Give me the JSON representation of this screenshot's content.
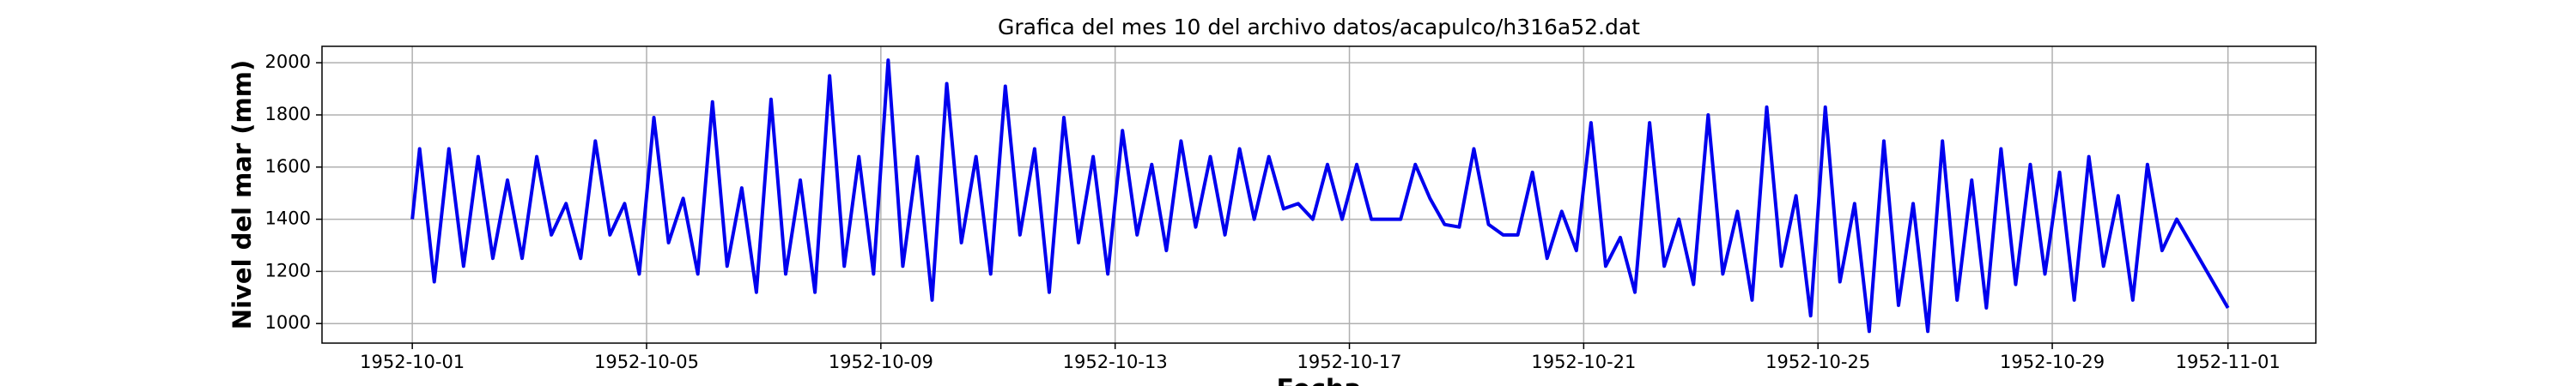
{
  "chart_data": {
    "type": "line",
    "title": "Grafica del mes 10 del archivo datos/acapulco/h316a52.dat",
    "x_label": "Fecha",
    "y_label": "Nivel del mar (mm)",
    "xlim": [
      "1952-09-29 11:00",
      "1952-11-02 12:00"
    ],
    "xticks": [
      "1952-10-01",
      "1952-10-05",
      "1952-10-09",
      "1952-10-13",
      "1952-10-17",
      "1952-10-21",
      "1952-10-25",
      "1952-10-29",
      "1952-11-01"
    ],
    "ylim": [
      925,
      2063
    ],
    "yticks": [
      1000,
      1200,
      1400,
      1600,
      1800,
      2000
    ],
    "grid": true,
    "x": [
      "1952-10-01 00:00",
      "1952-10-01 03:00",
      "1952-10-01 09:00",
      "1952-10-01 15:00",
      "1952-10-01 21:00",
      "1952-10-02 03:00",
      "1952-10-02 09:00",
      "1952-10-02 15:00",
      "1952-10-02 21:00",
      "1952-10-03 03:00",
      "1952-10-03 09:00",
      "1952-10-03 15:00",
      "1952-10-03 21:00",
      "1952-10-04 03:00",
      "1952-10-04 09:00",
      "1952-10-04 15:00",
      "1952-10-04 21:00",
      "1952-10-05 03:00",
      "1952-10-05 09:00",
      "1952-10-05 15:00",
      "1952-10-05 21:00",
      "1952-10-06 03:00",
      "1952-10-06 09:00",
      "1952-10-06 15:00",
      "1952-10-06 21:00",
      "1952-10-07 03:00",
      "1952-10-07 09:00",
      "1952-10-07 15:00",
      "1952-10-07 21:00",
      "1952-10-08 03:00",
      "1952-10-08 09:00",
      "1952-10-08 15:00",
      "1952-10-08 21:00",
      "1952-10-09 03:00",
      "1952-10-09 09:00",
      "1952-10-09 15:00",
      "1952-10-09 21:00",
      "1952-10-10 03:00",
      "1952-10-10 09:00",
      "1952-10-10 15:00",
      "1952-10-10 21:00",
      "1952-10-11 03:00",
      "1952-10-11 09:00",
      "1952-10-11 15:00",
      "1952-10-11 21:00",
      "1952-10-12 03:00",
      "1952-10-12 09:00",
      "1952-10-12 15:00",
      "1952-10-12 21:00",
      "1952-10-13 03:00",
      "1952-10-13 09:00",
      "1952-10-13 15:00",
      "1952-10-13 21:00",
      "1952-10-14 03:00",
      "1952-10-14 09:00",
      "1952-10-14 15:00",
      "1952-10-14 21:00",
      "1952-10-15 03:00",
      "1952-10-15 09:00",
      "1952-10-15 15:00",
      "1952-10-15 21:00",
      "1952-10-16 03:00",
      "1952-10-16 09:00",
      "1952-10-16 15:00",
      "1952-10-16 21:00",
      "1952-10-17 03:00",
      "1952-10-17 09:00",
      "1952-10-17 15:00",
      "1952-10-17 21:00",
      "1952-10-18 03:00",
      "1952-10-18 09:00",
      "1952-10-18 15:00",
      "1952-10-18 21:00",
      "1952-10-19 03:00",
      "1952-10-19 09:00",
      "1952-10-19 15:00",
      "1952-10-19 21:00",
      "1952-10-20 03:00",
      "1952-10-20 09:00",
      "1952-10-20 15:00",
      "1952-10-20 21:00",
      "1952-10-21 03:00",
      "1952-10-21 09:00",
      "1952-10-21 15:00",
      "1952-10-21 21:00",
      "1952-10-22 03:00",
      "1952-10-22 09:00",
      "1952-10-22 15:00",
      "1952-10-22 21:00",
      "1952-10-23 03:00",
      "1952-10-23 09:00",
      "1952-10-23 15:00",
      "1952-10-23 21:00",
      "1952-10-24 03:00",
      "1952-10-24 09:00",
      "1952-10-24 15:00",
      "1952-10-24 21:00",
      "1952-10-25 03:00",
      "1952-10-25 09:00",
      "1952-10-25 15:00",
      "1952-10-25 21:00",
      "1952-10-26 03:00",
      "1952-10-26 09:00",
      "1952-10-26 15:00",
      "1952-10-26 21:00",
      "1952-10-27 03:00",
      "1952-10-27 09:00",
      "1952-10-27 15:00",
      "1952-10-27 21:00",
      "1952-10-28 03:00",
      "1952-10-28 09:00",
      "1952-10-28 15:00",
      "1952-10-28 21:00",
      "1952-10-29 03:00",
      "1952-10-29 09:00",
      "1952-10-29 15:00",
      "1952-10-29 21:00",
      "1952-10-30 03:00",
      "1952-10-30 09:00",
      "1952-10-30 15:00",
      "1952-10-30 21:00",
      "1952-10-31 03:00",
      "1952-11-01 00:00"
    ],
    "series": [
      {
        "name": "Nivel del mar",
        "color": "#0000ee",
        "values": [
          1400,
          1670,
          1160,
          1670,
          1220,
          1640,
          1250,
          1550,
          1250,
          1640,
          1340,
          1460,
          1250,
          1700,
          1340,
          1460,
          1190,
          1790,
          1310,
          1480,
          1190,
          1850,
          1220,
          1520,
          1120,
          1860,
          1190,
          1550,
          1120,
          1950,
          1220,
          1640,
          1190,
          2010,
          1220,
          1640,
          1090,
          1920,
          1310,
          1640,
          1190,
          1910,
          1340,
          1670,
          1120,
          1790,
          1310,
          1640,
          1190,
          1740,
          1340,
          1610,
          1280,
          1700,
          1370,
          1640,
          1340,
          1670,
          1400,
          1640,
          1440,
          1460,
          1400,
          1610,
          1400,
          1610,
          1400,
          1400,
          1400,
          1610,
          1480,
          1380,
          1370,
          1670,
          1380,
          1340,
          1340,
          1580,
          1250,
          1430,
          1280,
          1770,
          1220,
          1330,
          1120,
          1770,
          1220,
          1400,
          1150,
          1800,
          1190,
          1430,
          1090,
          1830,
          1220,
          1490,
          1030,
          1830,
          1160,
          1460,
          970,
          1700,
          1070,
          1460,
          970,
          1700,
          1090,
          1550,
          1060,
          1670,
          1150,
          1610,
          1190,
          1580,
          1090,
          1640,
          1220,
          1490,
          1090,
          1610,
          1280,
          1400,
          1060
        ]
      }
    ]
  }
}
